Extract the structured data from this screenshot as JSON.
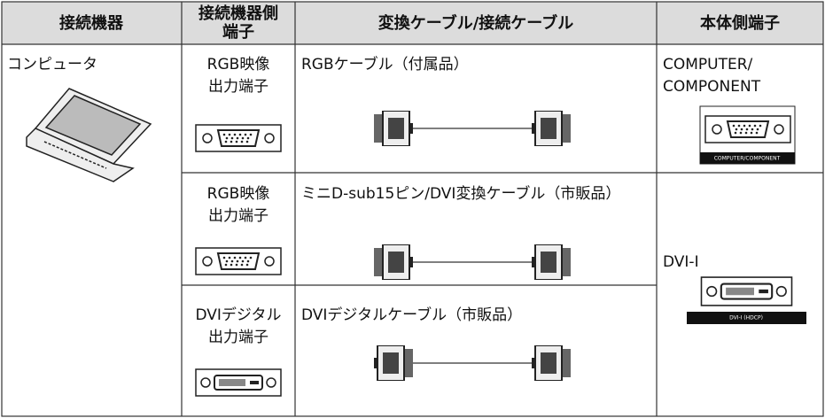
{
  "header": {
    "columns": [
      [
        "接続機器"
      ],
      [
        "接続機器側",
        "端子"
      ],
      [
        "変換ケーブル/接続ケーブル"
      ],
      [
        "本体側端子"
      ]
    ]
  },
  "device": "コンピュータ",
  "rows": [
    {
      "terminal": [
        "RGB映像",
        "出力端子"
      ],
      "cable": "RGBケーブル（付属品）"
    },
    {
      "terminal": [
        "RGB映像",
        "出力端子"
      ],
      "cable": "ミニD-sub15ピン/DVI変換ケーブル（市販品）"
    },
    {
      "terminal": [
        "DVIデジタル",
        "出力端子"
      ],
      "cable": "DVIデジタルケーブル（市販品）"
    }
  ],
  "main_terminals": [
    {
      "name": [
        "COMPUTER/",
        "COMPONENT"
      ],
      "port_label": "COMPUTER/COMPONENT"
    },
    {
      "name": [
        "DVI-I"
      ],
      "port_label": "DVI-I (HDCP)"
    }
  ]
}
